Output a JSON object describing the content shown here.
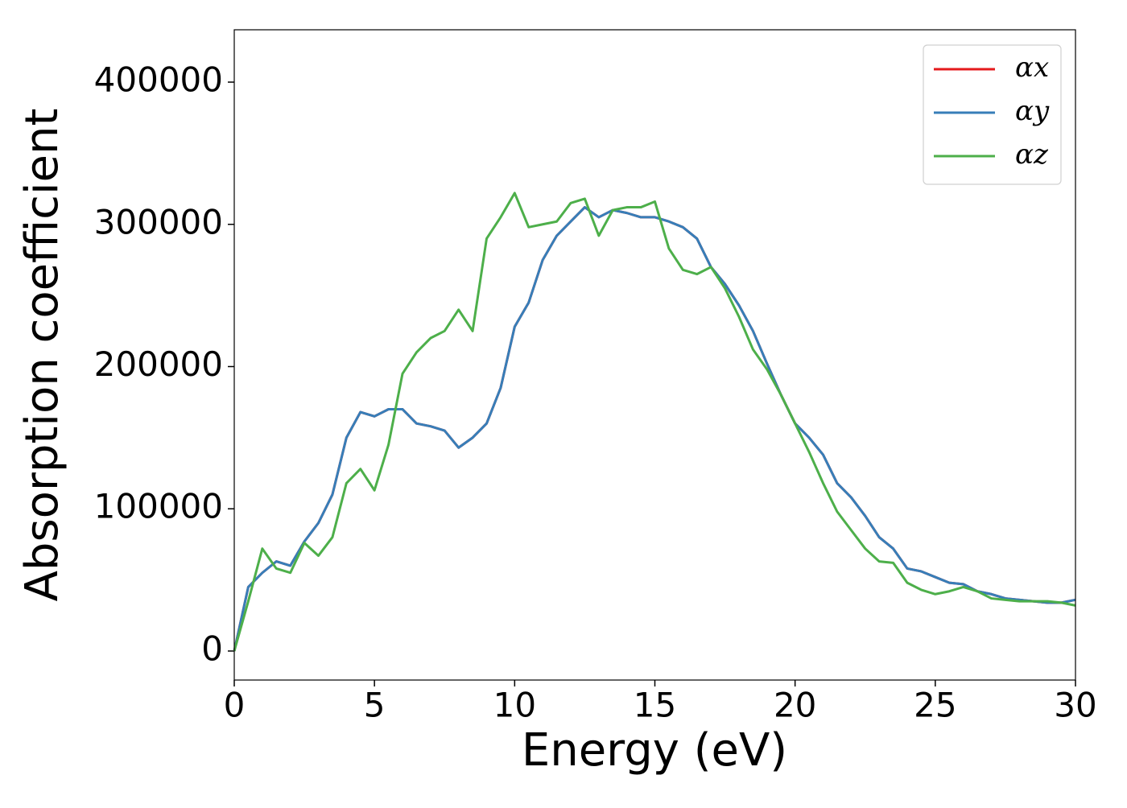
{
  "chart_data": {
    "type": "line",
    "xlabel": "Energy (eV)",
    "ylabel": "Absorption coefficient",
    "x": [
      0,
      0.5,
      1,
      1.5,
      2,
      2.5,
      3,
      3.5,
      4,
      4.5,
      5,
      5.5,
      6,
      6.5,
      7,
      7.5,
      8,
      8.5,
      9,
      9.5,
      10,
      10.5,
      11,
      11.5,
      12,
      12.5,
      13,
      13.5,
      14,
      14.5,
      15,
      15.5,
      16,
      16.5,
      17,
      17.5,
      18,
      18.5,
      19,
      19.5,
      20,
      20.5,
      21,
      21.5,
      22,
      22.5,
      23,
      23.5,
      24,
      24.5,
      25,
      25.5,
      26,
      26.5,
      27,
      27.5,
      28,
      28.5,
      29,
      29.5,
      30
    ],
    "series": [
      {
        "name": "αx",
        "color": "#e41a1c",
        "values": [
          0,
          45000,
          55000,
          63000,
          60000,
          77000,
          90000,
          110000,
          150000,
          168000,
          165000,
          170000,
          170000,
          160000,
          158000,
          155000,
          143000,
          150000,
          160000,
          185000,
          228000,
          245000,
          275000,
          292000,
          302000,
          312000,
          305000,
          310000,
          308000,
          305000,
          305000,
          302000,
          298000,
          290000,
          270000,
          258000,
          243000,
          225000,
          202000,
          180000,
          160000,
          150000,
          138000,
          118000,
          108000,
          95000,
          80000,
          72000,
          58000,
          56000,
          52000,
          48000,
          47000,
          42000,
          40000,
          37000,
          36000,
          35000,
          34000,
          34000,
          36000
        ]
      },
      {
        "name": "αy",
        "color": "#377eb8",
        "values": [
          0,
          45000,
          55000,
          63000,
          60000,
          77000,
          90000,
          110000,
          150000,
          168000,
          165000,
          170000,
          170000,
          160000,
          158000,
          155000,
          143000,
          150000,
          160000,
          185000,
          228000,
          245000,
          275000,
          292000,
          302000,
          312000,
          305000,
          310000,
          308000,
          305000,
          305000,
          302000,
          298000,
          290000,
          270000,
          258000,
          243000,
          225000,
          202000,
          180000,
          160000,
          150000,
          138000,
          118000,
          108000,
          95000,
          80000,
          72000,
          58000,
          56000,
          52000,
          48000,
          47000,
          42000,
          40000,
          37000,
          36000,
          35000,
          34000,
          34000,
          36000
        ]
      },
      {
        "name": "αz",
        "color": "#4daf4a",
        "values": [
          0,
          35000,
          72000,
          58000,
          55000,
          76000,
          67000,
          80000,
          118000,
          128000,
          113000,
          145000,
          195000,
          210000,
          220000,
          225000,
          240000,
          225000,
          290000,
          305000,
          322000,
          298000,
          300000,
          302000,
          315000,
          318000,
          292000,
          310000,
          312000,
          312000,
          316000,
          283000,
          268000,
          265000,
          270000,
          255000,
          235000,
          212000,
          198000,
          180000,
          160000,
          140000,
          118000,
          98000,
          85000,
          72000,
          63000,
          62000,
          48000,
          43000,
          40000,
          42000,
          45000,
          42000,
          37000,
          36000,
          35000,
          35000,
          35000,
          34000,
          32000
        ]
      }
    ],
    "xlim": [
      0,
      30
    ],
    "xticks": [
      0,
      5,
      10,
      15,
      20,
      25,
      30
    ],
    "ylim": [
      -20400,
      436800
    ],
    "yticks": [
      0,
      100000,
      200000,
      300000,
      400000
    ],
    "legend": "upper right"
  }
}
